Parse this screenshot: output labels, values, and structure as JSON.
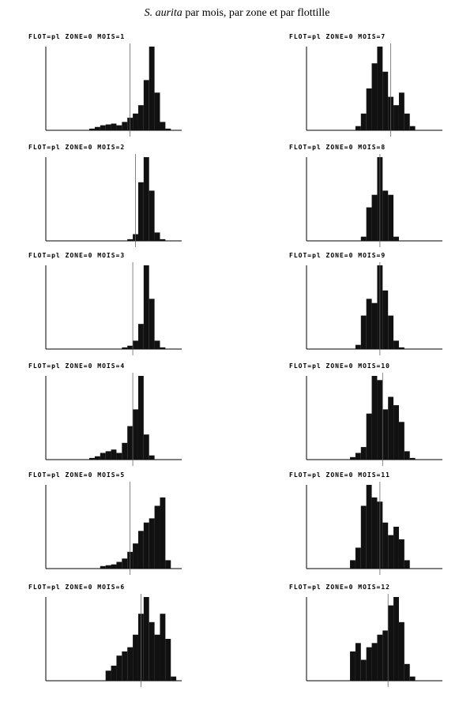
{
  "title": {
    "species": "S. aurita",
    "text": "par mois, par zone et par flottille"
  },
  "chart_data": [
    {
      "type": "histogram",
      "title": "FLOT=pl ZONE=0 MOIS=1",
      "color": "#111111",
      "ylim": [
        0,
        100
      ],
      "xlim": [
        0,
        25
      ],
      "vline": 15.5,
      "bins": [
        0,
        1,
        2,
        3,
        4,
        5,
        6,
        7,
        8,
        9,
        10,
        11,
        12,
        13,
        14,
        15,
        16,
        17,
        18,
        19,
        20,
        21,
        22,
        23,
        24,
        25
      ],
      "values": [
        0,
        0,
        0,
        0,
        0,
        0,
        0,
        0,
        2,
        4,
        6,
        7,
        8,
        6,
        10,
        15,
        20,
        30,
        60,
        100,
        45,
        10,
        2,
        0,
        0
      ]
    },
    {
      "type": "histogram",
      "title": "FLOT=pl ZONE=0 MOIS=2",
      "color": "#111111",
      "ylim": [
        0,
        100
      ],
      "xlim": [
        0,
        25
      ],
      "vline": 16.5,
      "bins": [
        0,
        1,
        2,
        3,
        4,
        5,
        6,
        7,
        8,
        9,
        10,
        11,
        12,
        13,
        14,
        15,
        16,
        17,
        18,
        19,
        20,
        21,
        22,
        23,
        24,
        25
      ],
      "values": [
        0,
        0,
        0,
        0,
        0,
        0,
        0,
        0,
        0,
        0,
        0,
        0,
        0,
        0,
        0,
        2,
        8,
        70,
        100,
        60,
        10,
        2,
        0,
        0,
        0
      ]
    },
    {
      "type": "histogram",
      "title": "FLOT=pl ZONE=0 MOIS=3",
      "color": "#111111",
      "ylim": [
        0,
        100
      ],
      "xlim": [
        0,
        25
      ],
      "vline": 16,
      "bins": [
        0,
        1,
        2,
        3,
        4,
        5,
        6,
        7,
        8,
        9,
        10,
        11,
        12,
        13,
        14,
        15,
        16,
        17,
        18,
        19,
        20,
        21,
        22,
        23,
        24,
        25
      ],
      "values": [
        0,
        0,
        0,
        0,
        0,
        0,
        0,
        0,
        0,
        0,
        0,
        0,
        0,
        0,
        2,
        4,
        10,
        30,
        100,
        60,
        10,
        2,
        0,
        0,
        0
      ]
    },
    {
      "type": "histogram",
      "title": "FLOT=pl ZONE=0 MOIS=4",
      "color": "#111111",
      "ylim": [
        0,
        100
      ],
      "xlim": [
        0,
        25
      ],
      "vline": 16,
      "bins": [
        0,
        1,
        2,
        3,
        4,
        5,
        6,
        7,
        8,
        9,
        10,
        11,
        12,
        13,
        14,
        15,
        16,
        17,
        18,
        19,
        20,
        21,
        22,
        23,
        24,
        25
      ],
      "values": [
        0,
        0,
        0,
        0,
        0,
        0,
        0,
        0,
        2,
        4,
        8,
        10,
        12,
        8,
        20,
        40,
        60,
        100,
        30,
        5,
        0,
        0,
        0,
        0,
        0
      ]
    },
    {
      "type": "histogram",
      "title": "FLOT=pl ZONE=0 MOIS=5",
      "color": "#111111",
      "ylim": [
        0,
        100
      ],
      "xlim": [
        0,
        25
      ],
      "vline": 15.5,
      "bins": [
        0,
        1,
        2,
        3,
        4,
        5,
        6,
        7,
        8,
        9,
        10,
        11,
        12,
        13,
        14,
        15,
        16,
        17,
        18,
        19,
        20,
        21,
        22,
        23,
        24,
        25
      ],
      "values": [
        0,
        0,
        0,
        0,
        0,
        0,
        0,
        0,
        0,
        0,
        3,
        4,
        5,
        8,
        12,
        20,
        30,
        45,
        55,
        60,
        75,
        85,
        10,
        0,
        0
      ]
    },
    {
      "type": "histogram",
      "title": "FLOT=pl ZONE=0 MOIS=6",
      "color": "#111111",
      "ylim": [
        0,
        100
      ],
      "xlim": [
        0,
        25
      ],
      "vline": 17.5,
      "bins": [
        0,
        1,
        2,
        3,
        4,
        5,
        6,
        7,
        8,
        9,
        10,
        11,
        12,
        13,
        14,
        15,
        16,
        17,
        18,
        19,
        20,
        21,
        22,
        23,
        24,
        25
      ],
      "values": [
        0,
        0,
        0,
        0,
        0,
        0,
        0,
        0,
        0,
        0,
        0,
        12,
        18,
        30,
        35,
        40,
        55,
        80,
        100,
        70,
        55,
        80,
        50,
        5,
        0
      ]
    },
    {
      "type": "histogram",
      "title": "FLOT=pl ZONE=0 MOIS=7",
      "color": "#111111",
      "ylim": [
        0,
        100
      ],
      "xlim": [
        0,
        25
      ],
      "vline": 15.5,
      "bins": [
        0,
        1,
        2,
        3,
        4,
        5,
        6,
        7,
        8,
        9,
        10,
        11,
        12,
        13,
        14,
        15,
        16,
        17,
        18,
        19,
        20,
        21,
        22,
        23,
        24,
        25
      ],
      "values": [
        0,
        0,
        0,
        0,
        0,
        0,
        0,
        0,
        0,
        5,
        20,
        50,
        80,
        100,
        70,
        40,
        30,
        45,
        20,
        5,
        0,
        0,
        0,
        0,
        0
      ]
    },
    {
      "type": "histogram",
      "title": "FLOT=pl ZONE=0 MOIS=8",
      "color": "#111111",
      "ylim": [
        0,
        100
      ],
      "xlim": [
        0,
        25
      ],
      "vline": 13.5,
      "bins": [
        0,
        1,
        2,
        3,
        4,
        5,
        6,
        7,
        8,
        9,
        10,
        11,
        12,
        13,
        14,
        15,
        16,
        17,
        18,
        19,
        20,
        21,
        22,
        23,
        24,
        25
      ],
      "values": [
        0,
        0,
        0,
        0,
        0,
        0,
        0,
        0,
        0,
        0,
        5,
        40,
        55,
        100,
        60,
        55,
        5,
        0,
        0,
        0,
        0,
        0,
        0,
        0,
        0
      ]
    },
    {
      "type": "histogram",
      "title": "FLOT=pl ZONE=0 MOIS=9",
      "color": "#111111",
      "ylim": [
        0,
        100
      ],
      "xlim": [
        0,
        25
      ],
      "vline": 13.5,
      "bins": [
        0,
        1,
        2,
        3,
        4,
        5,
        6,
        7,
        8,
        9,
        10,
        11,
        12,
        13,
        14,
        15,
        16,
        17,
        18,
        19,
        20,
        21,
        22,
        23,
        24,
        25
      ],
      "values": [
        0,
        0,
        0,
        0,
        0,
        0,
        0,
        0,
        0,
        5,
        40,
        60,
        55,
        100,
        70,
        40,
        10,
        2,
        0,
        0,
        0,
        0,
        0,
        0,
        0
      ]
    },
    {
      "type": "histogram",
      "title": "FLOT=pl ZONE=0 MOIS=10",
      "color": "#111111",
      "ylim": [
        0,
        100
      ],
      "xlim": [
        0,
        25
      ],
      "vline": 14,
      "bins": [
        0,
        1,
        2,
        3,
        4,
        5,
        6,
        7,
        8,
        9,
        10,
        11,
        12,
        13,
        14,
        15,
        16,
        17,
        18,
        19,
        20,
        21,
        22,
        23,
        24,
        25
      ],
      "values": [
        0,
        0,
        0,
        0,
        0,
        0,
        0,
        0,
        3,
        8,
        15,
        55,
        100,
        95,
        60,
        75,
        65,
        45,
        10,
        2,
        0,
        0,
        0,
        0,
        0
      ]
    },
    {
      "type": "histogram",
      "title": "FLOT=pl ZONE=0 MOIS=11",
      "color": "#111111",
      "ylim": [
        0,
        100
      ],
      "xlim": [
        0,
        25
      ],
      "vline": 13.5,
      "bins": [
        0,
        1,
        2,
        3,
        4,
        5,
        6,
        7,
        8,
        9,
        10,
        11,
        12,
        13,
        14,
        15,
        16,
        17,
        18,
        19,
        20,
        21,
        22,
        23,
        24,
        25
      ],
      "values": [
        0,
        0,
        0,
        0,
        0,
        0,
        0,
        0,
        10,
        25,
        75,
        100,
        85,
        80,
        55,
        40,
        50,
        35,
        10,
        0,
        0,
        0,
        0,
        0,
        0
      ]
    },
    {
      "type": "histogram",
      "title": "FLOT=pl ZONE=0 MOIS=12",
      "color": "#111111",
      "ylim": [
        0,
        100
      ],
      "xlim": [
        0,
        25
      ],
      "vline": 15,
      "bins": [
        0,
        1,
        2,
        3,
        4,
        5,
        6,
        7,
        8,
        9,
        10,
        11,
        12,
        13,
        14,
        15,
        16,
        17,
        18,
        19,
        20,
        21,
        22,
        23,
        24,
        25
      ],
      "values": [
        0,
        0,
        0,
        0,
        0,
        0,
        0,
        0,
        35,
        45,
        25,
        40,
        45,
        55,
        60,
        90,
        100,
        70,
        20,
        5,
        0,
        0,
        0,
        0,
        0
      ]
    }
  ]
}
